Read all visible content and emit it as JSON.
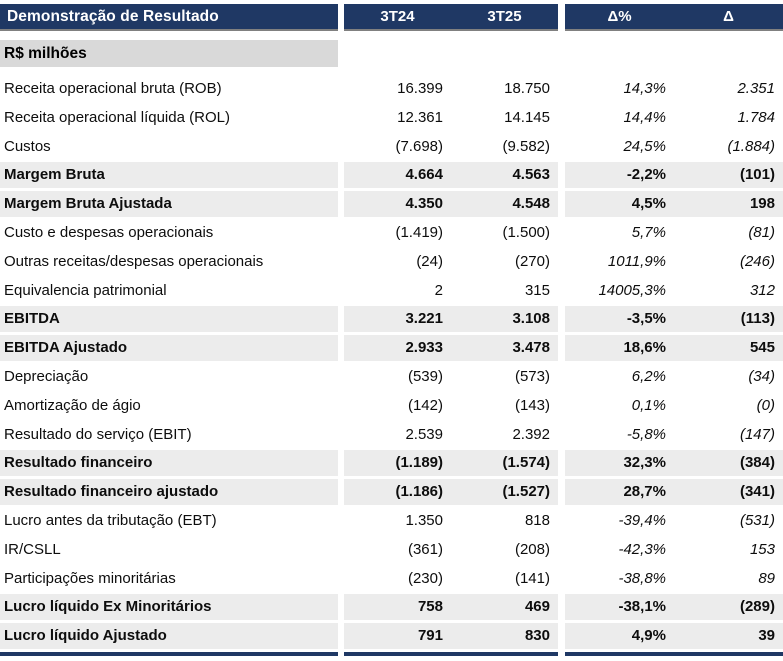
{
  "header": {
    "title": "Demonstração de Resultado",
    "columns": [
      "3T24",
      "3T25",
      "Δ%",
      "Δ"
    ]
  },
  "subheader": {
    "label": "R$ milhões"
  },
  "colors": {
    "navy": "#1F3864",
    "header_border": "#808080",
    "subheader_bg": "#D9D9D9",
    "strong_row_bg": "#ECECEC"
  },
  "table": {
    "rows": [
      {
        "label": "Receita operacional bruta (ROB)",
        "t24": "16.399",
        "t25": "18.750",
        "delta_pct": "14,3%",
        "delta": "2.351",
        "style": "normal"
      },
      {
        "label": "Receita operacional líquida (ROL)",
        "t24": "12.361",
        "t25": "14.145",
        "delta_pct": "14,4%",
        "delta": "1.784",
        "style": "normal"
      },
      {
        "label": "Custos",
        "t24": "(7.698)",
        "t25": "(9.582)",
        "delta_pct": "24,5%",
        "delta": "(1.884)",
        "style": "normal"
      },
      {
        "label": "Margem Bruta",
        "t24": "4.664",
        "t25": "4.563",
        "delta_pct": "-2,2%",
        "delta": "(101)",
        "style": "strong"
      },
      {
        "label": "Margem Bruta Ajustada",
        "t24": "4.350",
        "t25": "4.548",
        "delta_pct": "4,5%",
        "delta": "198",
        "style": "strong"
      },
      {
        "label": "Custo e despesas operacionais",
        "t24": "(1.419)",
        "t25": "(1.500)",
        "delta_pct": "5,7%",
        "delta": "(81)",
        "style": "normal"
      },
      {
        "label": "Outras receitas/despesas operacionais",
        "t24": "(24)",
        "t25": "(270)",
        "delta_pct": "1011,9%",
        "delta": "(246)",
        "style": "normal"
      },
      {
        "label": "Equivalencia patrimonial",
        "t24": "2",
        "t25": "315",
        "delta_pct": "14005,3%",
        "delta": "312",
        "style": "normal"
      },
      {
        "label": "EBITDA",
        "t24": "3.221",
        "t25": "3.108",
        "delta_pct": "-3,5%",
        "delta": "(113)",
        "style": "strong"
      },
      {
        "label": "EBITDA Ajustado",
        "t24": "2.933",
        "t25": "3.478",
        "delta_pct": "18,6%",
        "delta": "545",
        "style": "strong"
      },
      {
        "label": "Depreciação",
        "t24": "(539)",
        "t25": "(573)",
        "delta_pct": "6,2%",
        "delta": "(34)",
        "style": "normal"
      },
      {
        "label": "Amortização de ágio",
        "t24": "(142)",
        "t25": "(143)",
        "delta_pct": "0,1%",
        "delta": "(0)",
        "style": "normal"
      },
      {
        "label": "Resultado do serviço (EBIT)",
        "t24": "2.539",
        "t25": "2.392",
        "delta_pct": "-5,8%",
        "delta": "(147)",
        "style": "normal"
      },
      {
        "label": "Resultado financeiro",
        "t24": "(1.189)",
        "t25": "(1.574)",
        "delta_pct": "32,3%",
        "delta": "(384)",
        "style": "strong"
      },
      {
        "label": "Resultado financeiro ajustado",
        "t24": "(1.186)",
        "t25": "(1.527)",
        "delta_pct": "28,7%",
        "delta": "(341)",
        "style": "strong"
      },
      {
        "label": "Lucro antes da tributação (EBT)",
        "t24": "1.350",
        "t25": "818",
        "delta_pct": "-39,4%",
        "delta": "(531)",
        "style": "normal"
      },
      {
        "label": "IR/CSLL",
        "t24": "(361)",
        "t25": "(208)",
        "delta_pct": "-42,3%",
        "delta": "153",
        "style": "normal"
      },
      {
        "label": "Participações minoritárias",
        "t24": "(230)",
        "t25": "(141)",
        "delta_pct": "-38,8%",
        "delta": "89",
        "style": "normal"
      },
      {
        "label": "Lucro líquido Ex Minoritários",
        "t24": "758",
        "t25": "469",
        "delta_pct": "-38,1%",
        "delta": "(289)",
        "style": "strong"
      },
      {
        "label": "Lucro líquido Ajustado",
        "t24": "791",
        "t25": "830",
        "delta_pct": "4,9%",
        "delta": "39",
        "style": "strong"
      }
    ]
  }
}
